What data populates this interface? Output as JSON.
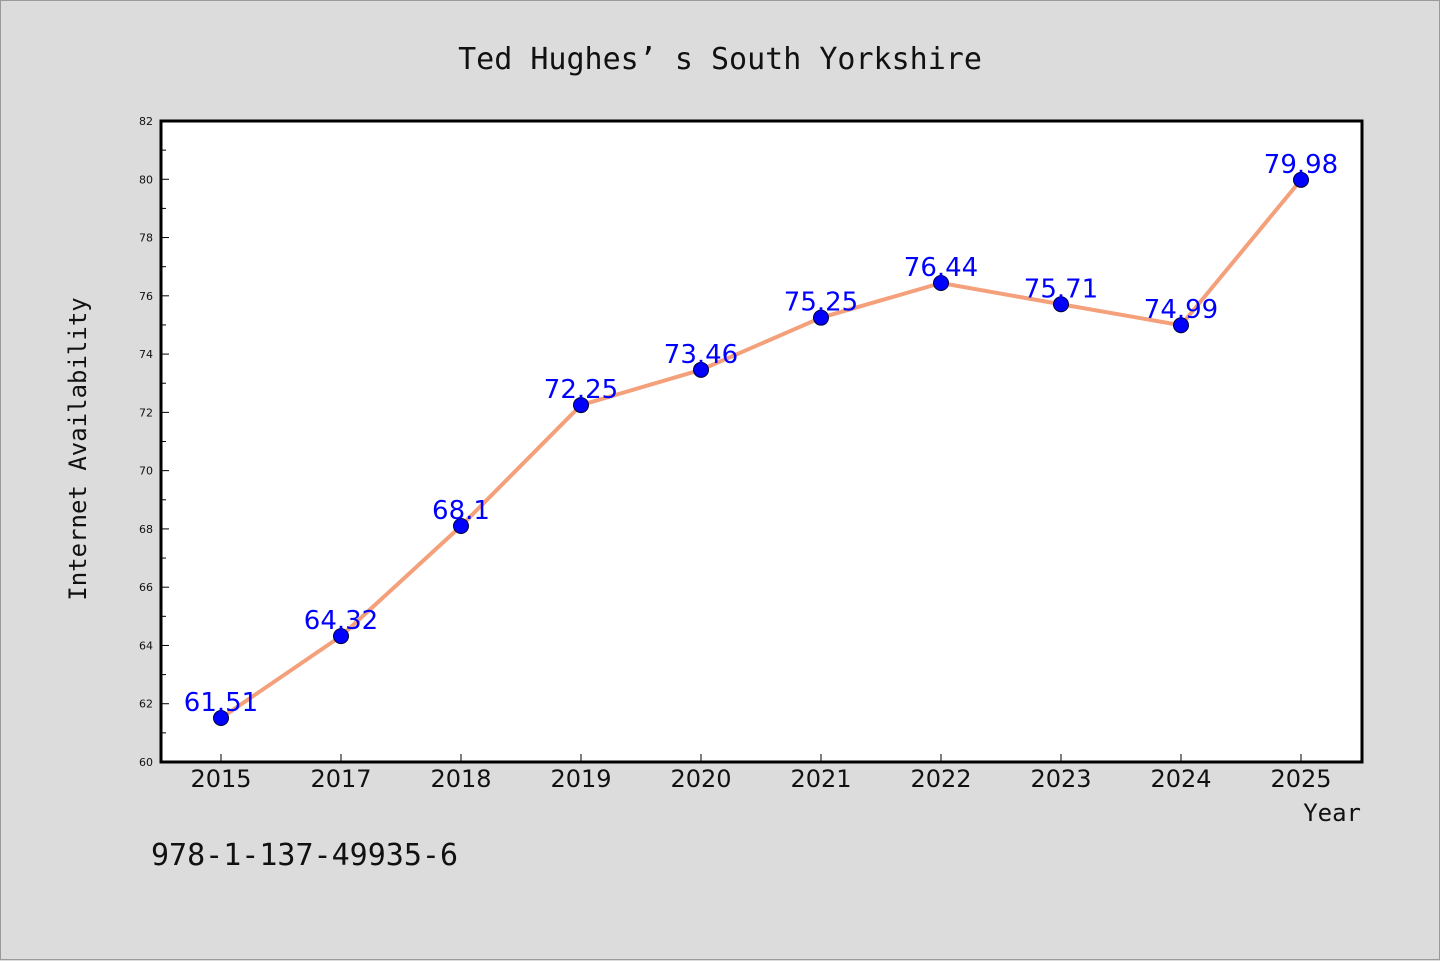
{
  "chart_data": {
    "type": "line",
    "title": "Ted Hughes’ s South Yorkshire",
    "xlabel": "Year",
    "ylabel": "Internet Availability",
    "categories": [
      "2015",
      "2017",
      "2018",
      "2019",
      "2020",
      "2021",
      "2022",
      "2023",
      "2024",
      "2025"
    ],
    "series": [
      {
        "values": [
          61.51,
          64.32,
          68.1,
          72.25,
          73.46,
          75.25,
          76.44,
          75.71,
          74.99,
          79.98
        ],
        "data_labels": [
          "61.51",
          "64.32",
          "68.1",
          "72.25",
          "73.46",
          "75.25",
          "76.44",
          "75.71",
          "74.99",
          "79.98"
        ],
        "line_color": "#f4a07a",
        "marker_color": "#0000ff"
      }
    ],
    "ylim": [
      60,
      82
    ],
    "yticks": [
      "60",
      "62",
      "64",
      "66",
      "68",
      "70",
      "72",
      "74",
      "76",
      "78",
      "80",
      "82"
    ],
    "grid": false,
    "legend": "none"
  },
  "caption": "978-1-137-49935-6",
  "colors": {
    "background": "#dcdcdc",
    "plot_background": "#ffffff",
    "data_label": "#0000ff"
  }
}
